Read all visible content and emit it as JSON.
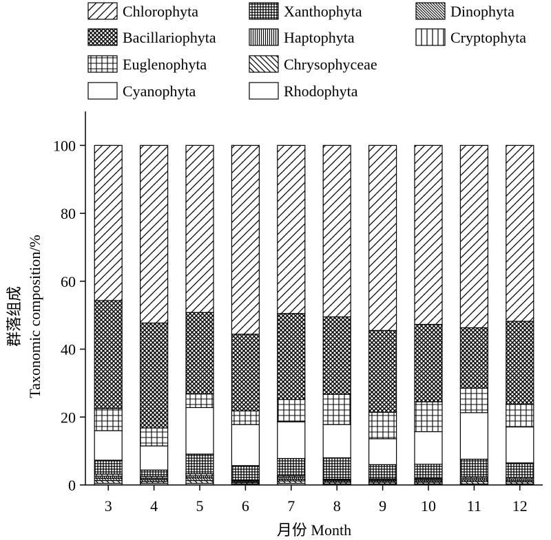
{
  "chart_data": {
    "type": "bar",
    "stacked": true,
    "title": "",
    "xlabel": "月份 Month",
    "ylabel_cn": "群落组成",
    "ylabel_en": "Taxonomic composition/%",
    "categories": [
      "3",
      "4",
      "5",
      "6",
      "7",
      "8",
      "9",
      "10",
      "11",
      "12"
    ],
    "ylim": [
      0,
      110
    ],
    "yticks": [
      "0",
      "20",
      "40",
      "60",
      "80",
      "100"
    ],
    "grid": false,
    "legend_position": "top",
    "series": [
      {
        "name": "Rhodophyta",
        "pattern": "blank",
        "values": [
          0.5,
          0.5,
          0.5,
          0.3,
          0.5,
          0.3,
          0.3,
          0.3,
          0.3,
          0.3
        ]
      },
      {
        "name": "Chrysophyceae",
        "pattern": "back-diag",
        "values": [
          0.8,
          0.5,
          0.8,
          0.4,
          0.7,
          0.5,
          0.5,
          0.5,
          0.7,
          0.6
        ]
      },
      {
        "name": "Dinophyta",
        "pattern": "back-dense",
        "values": [
          0.7,
          0.6,
          0.8,
          0.3,
          0.5,
          0.4,
          0.4,
          0.4,
          0.5,
          0.4
        ]
      },
      {
        "name": "Haptophyta",
        "pattern": "vlines",
        "values": [
          0.6,
          0.4,
          0.6,
          0.3,
          0.6,
          0.3,
          0.3,
          0.4,
          0.5,
          0.5
        ]
      },
      {
        "name": "Cryptophyta",
        "pattern": "vbars",
        "values": [
          0.6,
          0.5,
          0.6,
          0.2,
          0.4,
          0.2,
          0.3,
          0.3,
          0.4,
          0.4
        ]
      },
      {
        "name": "Xanthophyta",
        "pattern": "dense-grid",
        "values": [
          4.1,
          1.9,
          5.8,
          4.2,
          5.1,
          6.3,
          4.2,
          4.2,
          5.2,
          4.3
        ]
      },
      {
        "name": "Cyanophyta",
        "pattern": "blank",
        "values": [
          8.7,
          7.1,
          13.7,
          12.1,
          10.8,
          9.8,
          7.6,
          9.6,
          13.7,
          10.6
        ]
      },
      {
        "name": "Euglenophyta",
        "pattern": "grid",
        "values": [
          6.5,
          5.3,
          4.0,
          4.0,
          6.6,
          8.9,
          7.8,
          8.8,
          7.2,
          6.7
        ]
      },
      {
        "name": "Bacillariophyta",
        "pattern": "crosshatch",
        "values": [
          31.8,
          30.9,
          24.0,
          22.6,
          25.3,
          22.8,
          24.1,
          22.8,
          17.8,
          24.4
        ]
      },
      {
        "name": "Chlorophyta",
        "pattern": "diag",
        "values": [
          45.7,
          52.3,
          49.2,
          55.6,
          49.5,
          50.5,
          54.5,
          52.7,
          53.7,
          51.8
        ]
      }
    ],
    "legend_order": [
      "Chlorophyta",
      "Xanthophyta",
      "Dinophyta",
      "Bacillariophyta",
      "Haptophyta",
      "Cryptophyta",
      "Euglenophyta",
      "Chrysophyceae",
      "Cyanophyta",
      "Rhodophyta"
    ]
  }
}
